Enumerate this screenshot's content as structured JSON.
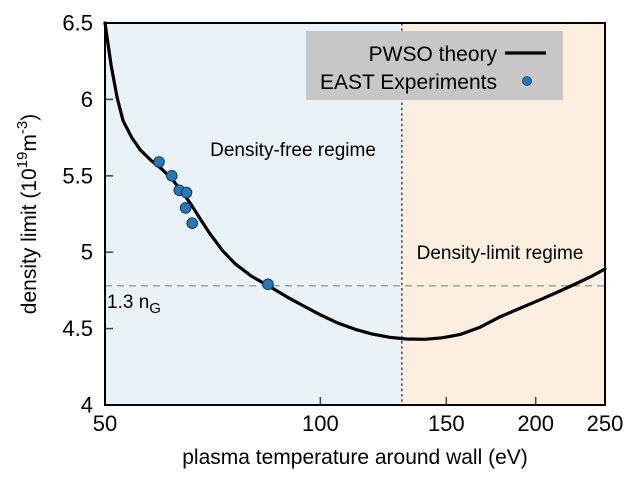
{
  "chart_data": {
    "type": "line",
    "title": "",
    "xlabel": "plasma temperature around wall (eV)",
    "ylabel_parts": {
      "p1": "density limit (10",
      "sup1": "19",
      "p2": "m",
      "sup2": "-3",
      "p3": ")"
    },
    "x_scale": "log",
    "xlim": [
      50,
      250
    ],
    "ylim": [
      4,
      6.5
    ],
    "x_ticks": [
      50,
      100,
      150,
      200,
      250
    ],
    "x_tick_labels": [
      "50",
      "100",
      "150",
      "200",
      "250"
    ],
    "y_ticks": [
      4,
      4.5,
      5,
      5.5,
      6,
      6.5
    ],
    "y_tick_labels": [
      "4",
      "4.5",
      "5",
      "5.5",
      "6",
      "6.5"
    ],
    "grid": false,
    "legend_position": "top-right",
    "series": [
      {
        "name": "PWSO theory",
        "type": "line",
        "color": "#000000",
        "points": [
          [
            50,
            6.5
          ],
          [
            51,
            6.22
          ],
          [
            52,
            6.01
          ],
          [
            53,
            5.86
          ],
          [
            54.5,
            5.75
          ],
          [
            56,
            5.67
          ],
          [
            58,
            5.6
          ],
          [
            60,
            5.545
          ],
          [
            62,
            5.48
          ],
          [
            64,
            5.4
          ],
          [
            66,
            5.31
          ],
          [
            68,
            5.215
          ],
          [
            70,
            5.125
          ],
          [
            73,
            5.01
          ],
          [
            76,
            4.925
          ],
          [
            80,
            4.845
          ],
          [
            85,
            4.775
          ],
          [
            90,
            4.705
          ],
          [
            95,
            4.645
          ],
          [
            100,
            4.59
          ],
          [
            106,
            4.535
          ],
          [
            112,
            4.495
          ],
          [
            118,
            4.465
          ],
          [
            125,
            4.443
          ],
          [
            132,
            4.432
          ],
          [
            140,
            4.43
          ],
          [
            148,
            4.44
          ],
          [
            157,
            4.462
          ],
          [
            167,
            4.508
          ],
          [
            178,
            4.575
          ],
          [
            190,
            4.632
          ],
          [
            202,
            4.685
          ],
          [
            215,
            4.74
          ],
          [
            228,
            4.795
          ],
          [
            240,
            4.845
          ],
          [
            250,
            4.89
          ]
        ]
      },
      {
        "name": "EAST Experiments",
        "type": "scatter",
        "color": "#2878b5",
        "points": [
          [
            59.5,
            5.59
          ],
          [
            62,
            5.5
          ],
          [
            63.5,
            5.405
          ],
          [
            65,
            5.39
          ],
          [
            64.8,
            5.29
          ],
          [
            66.2,
            5.19
          ],
          [
            84.5,
            4.79
          ]
        ]
      }
    ],
    "annotations": {
      "vline_x": 130,
      "hline_y": 4.78,
      "hline_label_parts": {
        "main": "1.3 n",
        "sub": "G"
      },
      "region_left_label": "Density-free regime",
      "region_right_label": "Density-limit regime"
    }
  },
  "colors": {
    "region_left": "#e9f2f7",
    "region_right": "#fcefe0",
    "legend_bg": "#c7c7c7",
    "curve": "#000000",
    "point_fill": "#2878b5",
    "point_edge": "#123a57",
    "blue_text": "#3079b1",
    "orange_text": "#d85c1e",
    "vline": "#3a3a3a",
    "hline": "#999999",
    "tick": "#444444"
  }
}
